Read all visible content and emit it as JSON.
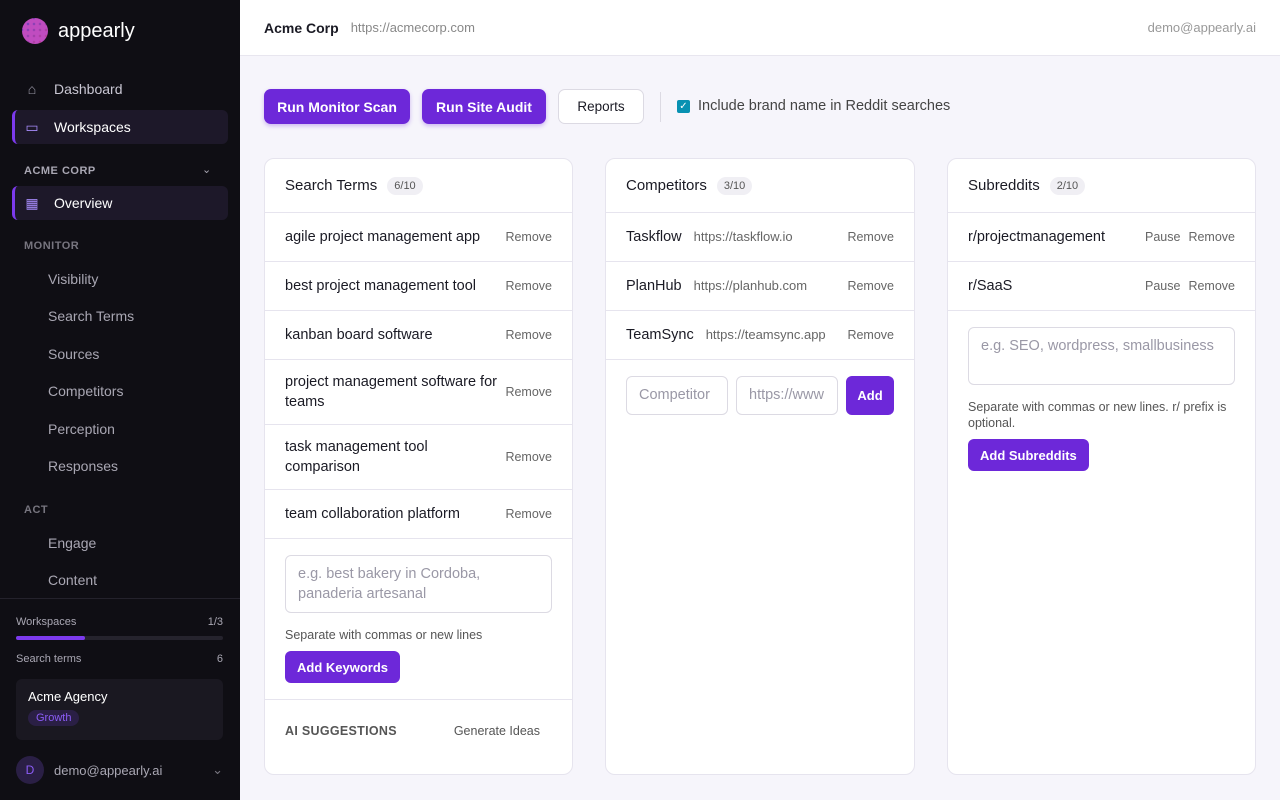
{
  "brand": {
    "name": "appearly"
  },
  "sidebar": {
    "nav": [
      {
        "label": "Dashboard",
        "icon": "home-icon"
      },
      {
        "label": "Workspaces",
        "icon": "folder-icon"
      }
    ],
    "workspace_label": "ACME CORP",
    "overview": "Overview",
    "monitor_label": "MONITOR",
    "monitor_items": [
      "Visibility",
      "Search Terms",
      "Sources",
      "Competitors",
      "Perception",
      "Responses"
    ],
    "act_label": "ACT",
    "act_items": [
      "Engage",
      "Content"
    ],
    "usage": {
      "workspaces_label": "Workspaces",
      "workspaces_value": "1/3",
      "workspaces_fraction": 0.333,
      "terms_label": "Search terms",
      "terms_value": "6"
    },
    "agency": {
      "name": "Acme Agency",
      "plan": "Growth"
    },
    "user": {
      "initial": "D",
      "email": "demo@appearly.ai"
    }
  },
  "header": {
    "company": "Acme Corp",
    "url": "https://acmecorp.com",
    "user": "demo@appearly.ai"
  },
  "toolbar": {
    "monitor": "Run Monitor Scan",
    "audit": "Run Site Audit",
    "reports": "Reports",
    "checkbox_label": "Include brand name in Reddit searches",
    "checkbox_checked": true
  },
  "search_terms": {
    "title": "Search Terms",
    "count": "6/10",
    "remove": "Remove",
    "items": [
      "agile project management app",
      "best project management tool",
      "kanban board software",
      "project management software for teams",
      "task management tool comparison",
      "team collaboration platform"
    ],
    "placeholder": "e.g. best bakery in Cordoba, panaderia artesanal",
    "hint": "Separate with commas or new lines",
    "add": "Add Keywords",
    "ai_label": "AI SUGGESTIONS",
    "generate": "Generate Ideas"
  },
  "competitors": {
    "title": "Competitors",
    "count": "3/10",
    "remove": "Remove",
    "items": [
      {
        "name": "Taskflow",
        "url": "https://taskflow.io"
      },
      {
        "name": "PlanHub",
        "url": "https://planhub.com"
      },
      {
        "name": "TeamSync",
        "url": "https://teamsync.app"
      }
    ],
    "name_placeholder": "Competitor",
    "url_placeholder": "https://www",
    "add": "Add"
  },
  "subreddits": {
    "title": "Subreddits",
    "count": "2/10",
    "pause": "Pause",
    "remove": "Remove",
    "items": [
      "r/projectmanagement",
      "r/SaaS"
    ],
    "placeholder": "e.g. SEO, wordpress, smallbusiness",
    "hint": "Separate with commas or new lines. r/ prefix is optional.",
    "add": "Add Subreddits"
  },
  "colors": {
    "accent": "#6d28d9",
    "sidebar_bg": "#0f0e14",
    "checkbox": "#0891b2"
  }
}
